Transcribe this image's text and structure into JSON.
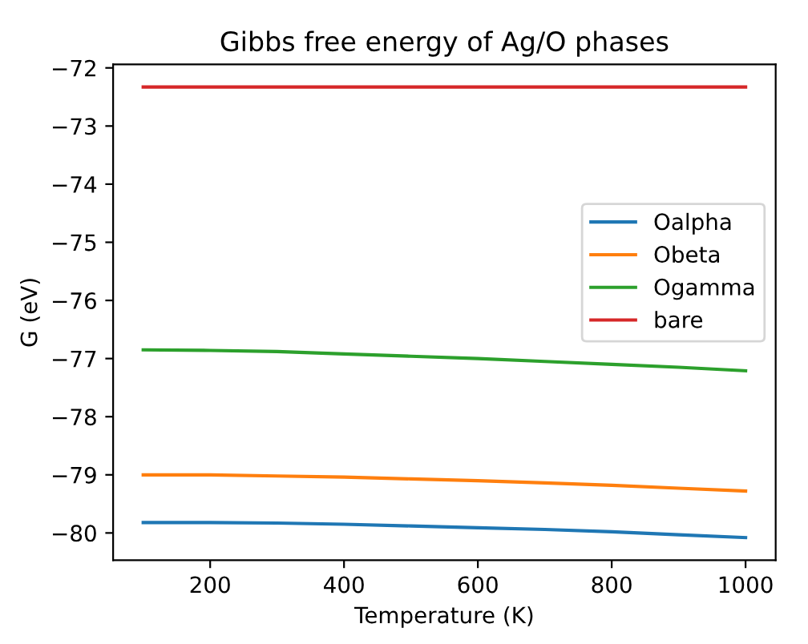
{
  "chart_data": {
    "type": "line",
    "title": "Gibbs free energy of Ag/O phases",
    "xlabel": "Temperature (K)",
    "ylabel": "G (eV)",
    "x": [
      100,
      200,
      300,
      400,
      500,
      600,
      700,
      800,
      900,
      1000
    ],
    "series": [
      {
        "name": "Oalpha",
        "color": "#1f77b4",
        "values": [
          -79.82,
          -79.82,
          -79.83,
          -79.85,
          -79.88,
          -79.91,
          -79.94,
          -79.98,
          -80.03,
          -80.08
        ]
      },
      {
        "name": "Obeta",
        "color": "#ff7f0e",
        "values": [
          -79.0,
          -79.0,
          -79.02,
          -79.04,
          -79.07,
          -79.1,
          -79.14,
          -79.18,
          -79.23,
          -79.28
        ]
      },
      {
        "name": "Ogamma",
        "color": "#2ca02c",
        "values": [
          -76.85,
          -76.86,
          -76.88,
          -76.92,
          -76.96,
          -77.0,
          -77.05,
          -77.1,
          -77.15,
          -77.21
        ]
      },
      {
        "name": "bare",
        "color": "#d62728",
        "values": [
          -72.33,
          -72.33,
          -72.33,
          -72.33,
          -72.33,
          -72.33,
          -72.33,
          -72.33,
          -72.33,
          -72.33
        ]
      }
    ],
    "xlim": [
      55,
      1045
    ],
    "xticks": [
      200,
      400,
      600,
      800,
      1000
    ],
    "ylim": [
      -80.47,
      -71.94
    ],
    "yticks": [
      -80,
      -79,
      -78,
      -77,
      -76,
      -75,
      -74,
      -73,
      -72
    ],
    "legend": "right",
    "grid": false
  }
}
